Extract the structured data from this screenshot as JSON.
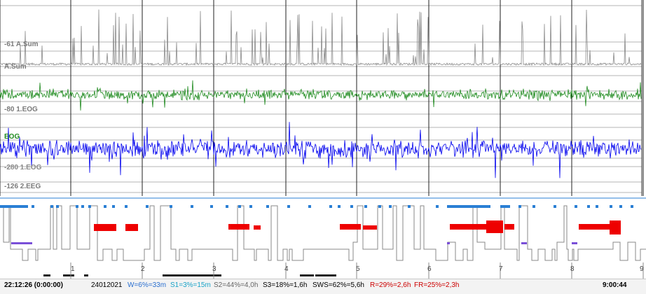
{
  "channels": [
    {
      "scale": "-61",
      "name": "A.Sum",
      "alt_name": "A.Sum",
      "color": "#8a8a8a"
    },
    {
      "scale": "-80",
      "name": "1.EOG",
      "color": "#1e8a1e"
    },
    {
      "scale": "-280",
      "name": "1.EOG",
      "color": "#0000ee"
    },
    {
      "scale": "-126",
      "name": "2.EEG",
      "color": "#7a7a7a"
    }
  ],
  "eog_tag": "EOG",
  "hour_ticks": [
    "1",
    "2",
    "3",
    "4",
    "5",
    "6",
    "7",
    "8",
    "9"
  ],
  "status": {
    "start_time": "22:12:26 (0:00:00)",
    "date": "24012021",
    "w": "W=6%=33m",
    "s1": "S1=3%=15m",
    "s2": "S2=44%=4,0h",
    "s3": "S3=18%=1,6h",
    "sws": "SWS=62%=5,6h",
    "r": "R=29%=2,6h",
    "fr": "FR=25%=2,3h",
    "end_time": "9:00:44"
  },
  "colors": {
    "grid": "#b4b4b4",
    "hour_line": "#222222",
    "stage_line": "#888888",
    "wake_marker": "#2a7fd4",
    "s1_marker": "#7a4fd8",
    "rem_block": "#ee0000",
    "movement_bar": "#222222",
    "w_text": "#2a6fd0",
    "s1_text": "#1aa3c8",
    "s2_text": "#666666",
    "r_text": "#cc0000",
    "fr_text": "#cc0000"
  }
}
